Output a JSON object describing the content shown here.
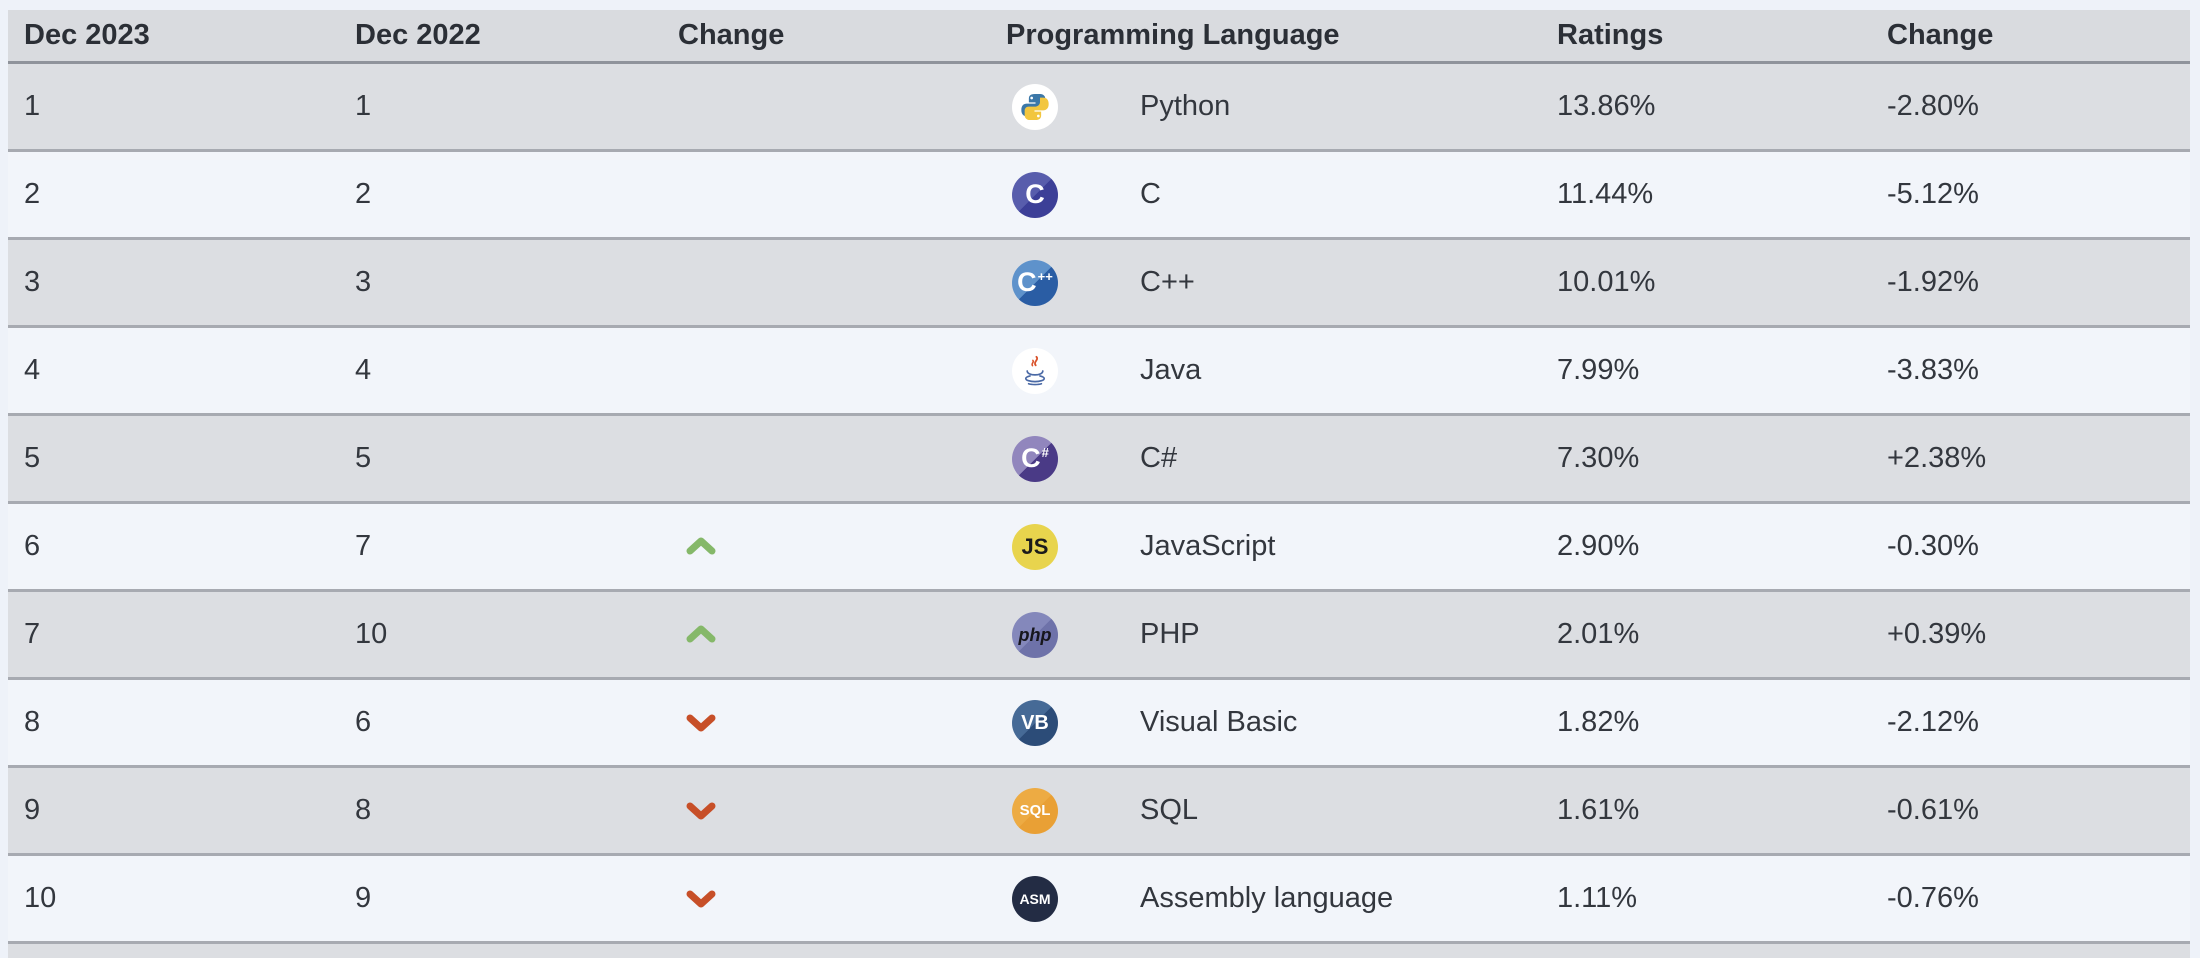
{
  "table": {
    "columns": [
      {
        "label": "Dec 2023"
      },
      {
        "label": "Dec 2022"
      },
      {
        "label": "Change"
      },
      {
        "label": "Programming Language"
      },
      {
        "label": "Ratings"
      },
      {
        "label": "Change"
      }
    ],
    "rows": [
      {
        "dec2023": "1",
        "dec2022": "1",
        "direction": null,
        "language": "Python",
        "ratings": "13.86%",
        "change": "-2.80%",
        "icon": {
          "name": "python-icon",
          "kind": "python",
          "bg": "#ffffff",
          "blue": "#3b77a8",
          "yellow": "#f2c63f"
        }
      },
      {
        "dec2023": "2",
        "dec2022": "2",
        "direction": null,
        "language": "C",
        "ratings": "11.44%",
        "change": "-5.12%",
        "icon": {
          "name": "c-icon",
          "kind": "letter",
          "bg": "#585dac",
          "bg2": "#3c3f97",
          "color": "#ffffff",
          "text": "C",
          "small": ""
        }
      },
      {
        "dec2023": "3",
        "dec2022": "3",
        "direction": null,
        "language": "C++",
        "ratings": "10.01%",
        "change": "-1.92%",
        "icon": {
          "name": "cpp-icon",
          "kind": "letter",
          "bg": "#5e92cb",
          "bg2": "#2a5da4",
          "color": "#ffffff",
          "text": "C",
          "small": "++"
        }
      },
      {
        "dec2023": "4",
        "dec2022": "4",
        "direction": null,
        "language": "Java",
        "ratings": "7.99%",
        "change": "-3.83%",
        "icon": {
          "name": "java-icon",
          "kind": "java",
          "bg": "#ffffff",
          "steam": "#d9532c",
          "cup": "#4a69a5"
        }
      },
      {
        "dec2023": "5",
        "dec2022": "5",
        "direction": null,
        "language": "C#",
        "ratings": "7.30%",
        "change": "+2.38%",
        "icon": {
          "name": "csharp-icon",
          "kind": "letter",
          "bg": "#9186bd",
          "bg2": "#4a3a86",
          "color": "#ffffff",
          "text": "C",
          "small": "#"
        }
      },
      {
        "dec2023": "6",
        "dec2022": "7",
        "direction": "up",
        "language": "JavaScript",
        "ratings": "2.90%",
        "change": "-0.30%",
        "icon": {
          "name": "javascript-icon",
          "kind": "letter",
          "bg": "#e8d44d",
          "bg2": "#e8d44d",
          "color": "#1b1b1b",
          "text": "JS",
          "small": "",
          "mainSize": "22px"
        }
      },
      {
        "dec2023": "7",
        "dec2022": "10",
        "direction": "up",
        "language": "PHP",
        "ratings": "2.01%",
        "change": "+0.39%",
        "icon": {
          "name": "php-icon",
          "kind": "letter",
          "bg": "#8488bb",
          "bg2": "#6e72a9",
          "color": "#16161c",
          "text": "php",
          "small": "",
          "mainSize": "18px",
          "italic": true
        }
      },
      {
        "dec2023": "8",
        "dec2022": "6",
        "direction": "down",
        "language": "Visual Basic",
        "ratings": "1.82%",
        "change": "-2.12%",
        "icon": {
          "name": "visual-basic-icon",
          "kind": "letter",
          "bg": "#466a96",
          "bg2": "#2c4c78",
          "color": "#ffffff",
          "text": "VB",
          "small": "",
          "mainSize": "20px"
        }
      },
      {
        "dec2023": "9",
        "dec2022": "8",
        "direction": "down",
        "language": "SQL",
        "ratings": "1.61%",
        "change": "-0.61%",
        "icon": {
          "name": "sql-icon",
          "kind": "letter",
          "bg": "#edab43",
          "bg2": "#e9a035",
          "color": "#ffffff",
          "text": "SQL",
          "small": "",
          "mainSize": "15px"
        }
      },
      {
        "dec2023": "10",
        "dec2022": "9",
        "direction": "down",
        "language": "Assembly language",
        "ratings": "1.11%",
        "change": "-0.76%",
        "icon": {
          "name": "assembly-icon",
          "kind": "letter",
          "bg": "#232c44",
          "bg2": "#232c44",
          "color": "#ffffff",
          "text": "ASM",
          "small": "",
          "mainSize": "14px"
        }
      }
    ],
    "colors": {
      "up_arrow": "#85b869",
      "down_arrow": "#c74f28",
      "gray_row": "#dcdee2",
      "light_row": "#f2f5fa",
      "header_bg": "#d9dbdf",
      "page_bg": "#eef2f9"
    }
  }
}
